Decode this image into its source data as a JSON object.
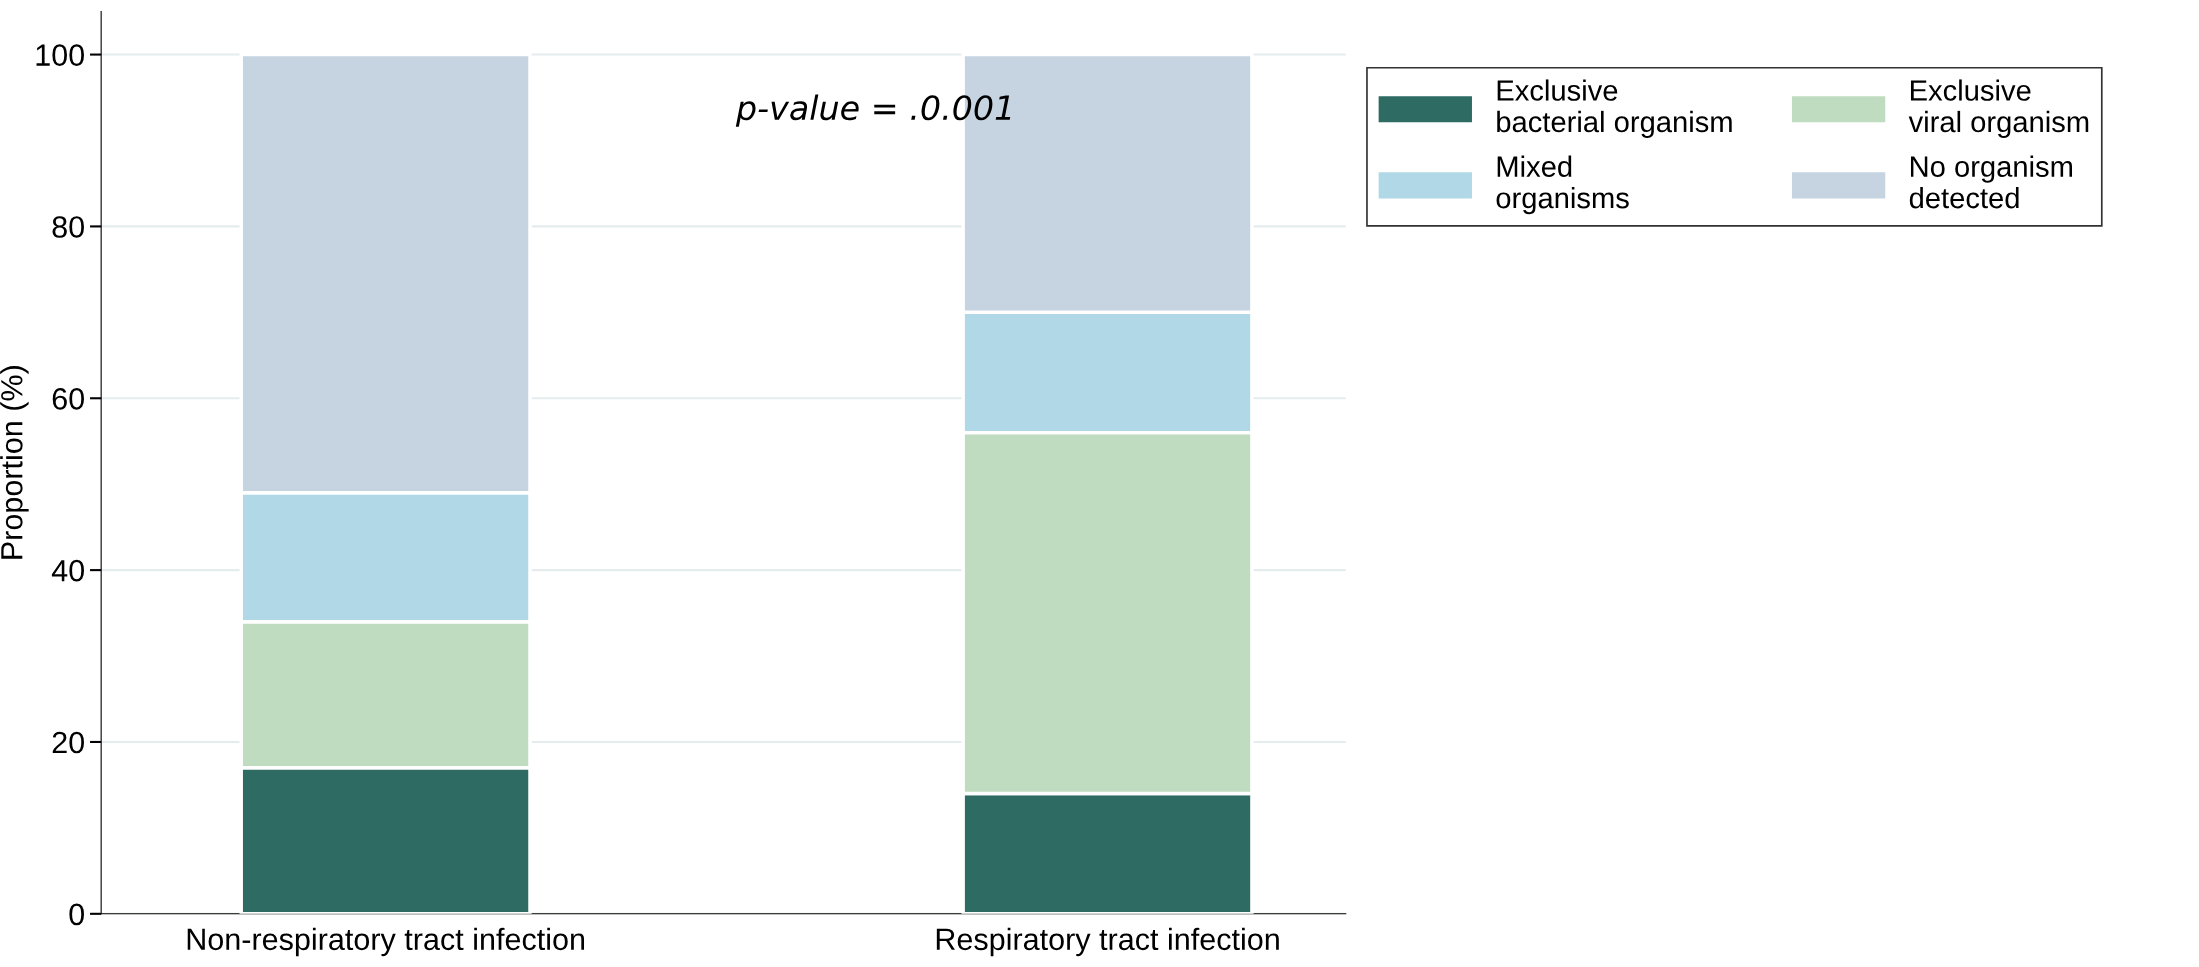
{
  "chart_data": {
    "type": "bar",
    "stacked": true,
    "ylabel": "Proportion (%)",
    "categories": [
      "Non-respiratory tract infection",
      "Respiratory tract infection"
    ],
    "series": [
      {
        "name": "Exclusive\nbacterial organism",
        "color": "#2d6b63",
        "values": [
          17,
          14
        ]
      },
      {
        "name": "Exclusive\nviral organism",
        "color": "#c0dcc0",
        "values": [
          17,
          42
        ]
      },
      {
        "name": "Mixed\norganisms",
        "color": "#b0d8e6",
        "values": [
          15,
          14
        ]
      },
      {
        "name": "No organism\ndetected",
        "color": "#c6d3e0",
        "values": [
          51,
          30
        ]
      }
    ],
    "ylim": [
      0,
      105
    ],
    "yticks": [
      0,
      20,
      40,
      60,
      80,
      100
    ],
    "grid": "y",
    "legend": "top right",
    "annotations": [
      "p-value = .0.001"
    ]
  }
}
